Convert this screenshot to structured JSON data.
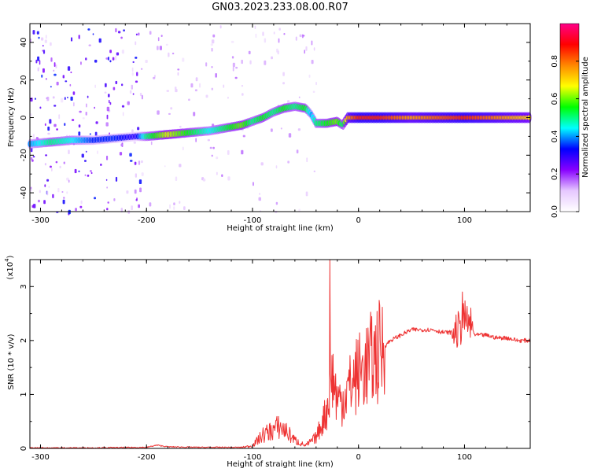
{
  "figure": {
    "title": "GN03.2023.233.08.00.R07"
  },
  "chart_data": [
    {
      "type": "heatmap",
      "title": "GN03.2023.233.08.00.R07",
      "xlabel": "Height of straight line (km)",
      "ylabel": "Frequency (Hz)",
      "xlim": [
        -310,
        162
      ],
      "ylim": [
        -50,
        50
      ],
      "x_ticks": [
        -300,
        -200,
        -100,
        0,
        100
      ],
      "y_ticks": [
        -40,
        -20,
        0,
        20,
        40
      ],
      "colorbar": {
        "label": "Normalized spectral amplitude",
        "range": [
          0,
          1
        ],
        "ticks": [
          0.0,
          0.2,
          0.4,
          0.6,
          0.8
        ],
        "colormap": [
          "#ffffff",
          "#e6c8ff",
          "#8800ff",
          "#0000ff",
          "#00ffff",
          "#00ff00",
          "#ffff00",
          "#ff8800",
          "#ff0000",
          "#ff0088"
        ]
      },
      "ridge": {
        "x": [
          -310,
          -290,
          -270,
          -250,
          -230,
          -210,
          -200,
          -180,
          -160,
          -140,
          -120,
          -110,
          -100,
          -90,
          -80,
          -70,
          -60,
          -50,
          -45,
          -40,
          -30,
          -20,
          -15,
          -10,
          0,
          20,
          50,
          100,
          160
        ],
        "frequency": [
          -14,
          -13,
          -12,
          -12,
          -11,
          -10,
          -10,
          -9,
          -8,
          -7,
          -5,
          -4,
          -2,
          0,
          3,
          5,
          6,
          5,
          2,
          -3,
          -3,
          -2,
          -4,
          0,
          0,
          0,
          0,
          0,
          0
        ],
        "amplitude": [
          0.4,
          0.5,
          0.45,
          0.35,
          0.35,
          0.3,
          0.5,
          0.65,
          0.55,
          0.45,
          0.55,
          0.6,
          0.5,
          0.55,
          0.5,
          0.55,
          0.5,
          0.55,
          0.4,
          0.5,
          0.55,
          0.6,
          0.5,
          0.75,
          0.85,
          0.85,
          0.75,
          0.85,
          0.7
        ]
      },
      "colors": {
        "frame": "#000000"
      }
    },
    {
      "type": "line",
      "xlabel": "Height of straight line (km)",
      "ylabel": "SNR (10 * v/v)",
      "y_multiplier": "(x10",
      "y_multiplier_exp": "4",
      "xlim": [
        -310,
        162
      ],
      "ylim": [
        0,
        3.5
      ],
      "x_ticks": [
        -300,
        -200,
        -100,
        0,
        100
      ],
      "y_ticks": [
        0,
        1,
        2,
        3
      ],
      "series": [
        {
          "color": "#ee3333",
          "x": [
            -310,
            -250,
            -200,
            -190,
            -180,
            -150,
            -110,
            -100,
            -90,
            -80,
            -75,
            -70,
            -60,
            -50,
            -40,
            -30,
            -25,
            -20,
            -15,
            -10,
            -5,
            0,
            10,
            20,
            30,
            40,
            50,
            60,
            70,
            80,
            90,
            95,
            100,
            105,
            110,
            120,
            130,
            140,
            150,
            162
          ],
          "y": [
            0.01,
            0.01,
            0.02,
            0.06,
            0.03,
            0.02,
            0.02,
            0.05,
            0.25,
            0.35,
            0.4,
            0.35,
            0.15,
            0.05,
            0.2,
            0.7,
            1.4,
            0.9,
            0.9,
            1.1,
            1.25,
            1.4,
            1.6,
            1.8,
            2.0,
            2.1,
            2.2,
            2.2,
            2.2,
            2.15,
            2.15,
            2.2,
            2.4,
            2.3,
            2.1,
            2.1,
            2.05,
            2.05,
            2.0,
            2.0
          ]
        }
      ],
      "annotations": [
        {
          "x": -27,
          "peak": 3.5
        },
        {
          "x": 98,
          "peak": 2.9
        }
      ]
    }
  ]
}
